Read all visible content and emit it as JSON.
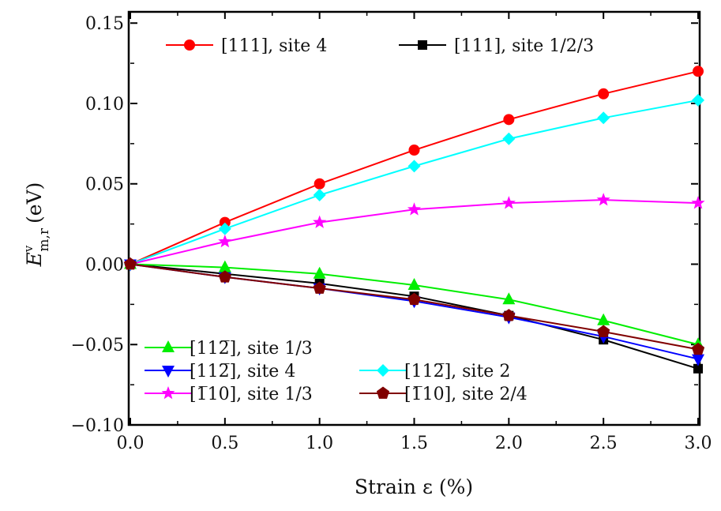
{
  "chart_data": {
    "type": "line",
    "xlabel": "Strain ε (%)",
    "ylabel": {
      "main": "E",
      "sup": "v",
      "sub": "m,r",
      "unit": "(eV)"
    },
    "xlim": [
      0.0,
      3.0
    ],
    "ylim": [
      -0.1,
      0.157
    ],
    "x_ticks": [
      "0.0",
      "0.5",
      "1.0",
      "1.5",
      "2.0",
      "2.5",
      "3.0"
    ],
    "y_ticks": [
      "−0.10",
      "−0.05",
      "0.00",
      "0.05",
      "0.10",
      "0.15"
    ],
    "grid": false,
    "x": [
      0.0,
      0.5,
      1.0,
      1.5,
      2.0,
      2.5,
      3.0
    ],
    "series": [
      {
        "name": "[111], site 4",
        "color": "#ff0000",
        "marker": "circle",
        "values": [
          0,
          0.026,
          0.05,
          0.071,
          0.09,
          0.106,
          0.12
        ]
      },
      {
        "name": "[111], site 1/2/3",
        "color": "#000000",
        "marker": "square",
        "values": [
          0,
          -0.006,
          -0.012,
          -0.02,
          -0.032,
          -0.047,
          -0.065
        ]
      },
      {
        "name": "[112̅], site 1/3",
        "color": "#00ee00",
        "marker": "triangle-up",
        "values": [
          0,
          -0.002,
          -0.006,
          -0.013,
          -0.022,
          -0.035,
          -0.05
        ]
      },
      {
        "name": "[112̅], site 4",
        "color": "#0000ff",
        "marker": "triangle-down",
        "values": [
          0,
          -0.008,
          -0.015,
          -0.023,
          -0.033,
          -0.045,
          -0.059
        ]
      },
      {
        "name": "[112̅], site 2",
        "color": "#00ffff",
        "marker": "diamond",
        "values": [
          0,
          0.022,
          0.043,
          0.061,
          0.078,
          0.091,
          0.102
        ]
      },
      {
        "name": "[1̅10], site 1/3",
        "color": "#ff00ff",
        "marker": "star",
        "values": [
          0,
          0.014,
          0.026,
          0.034,
          0.038,
          0.04,
          0.038
        ]
      },
      {
        "name": "[1̅10], site 2/4",
        "color": "#800000",
        "marker": "pentagon",
        "values": [
          0,
          -0.008,
          -0.015,
          -0.022,
          -0.032,
          -0.042,
          -0.053
        ]
      }
    ],
    "legend": [
      {
        "placement": "top",
        "entries": [
          0,
          1
        ]
      },
      {
        "placement": "bottom-left",
        "entries": [
          2,
          3,
          4,
          5,
          6
        ]
      }
    ]
  }
}
